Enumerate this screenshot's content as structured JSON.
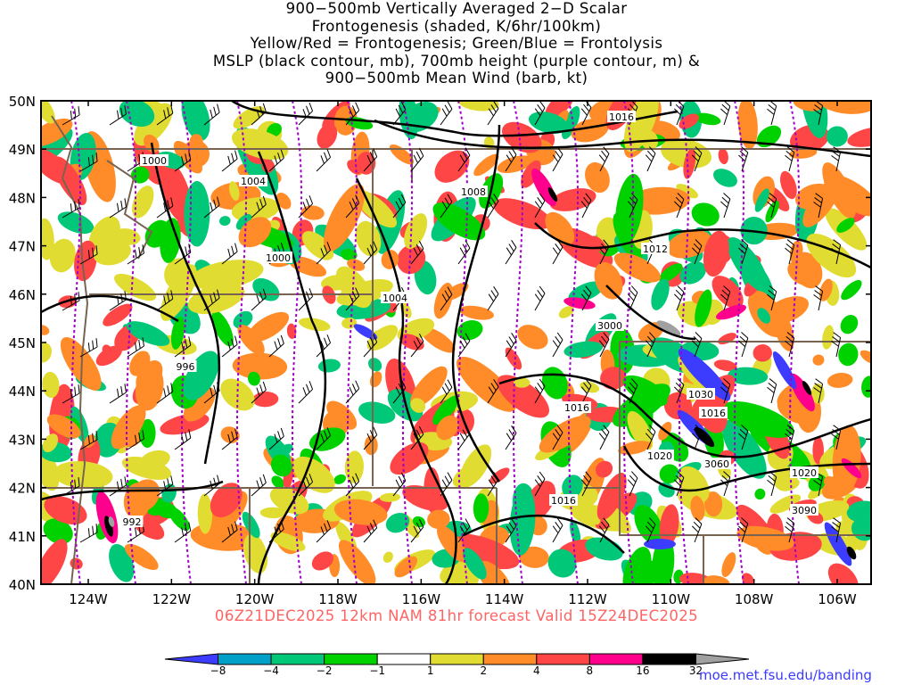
{
  "title": {
    "lines": [
      "900−500mb Vertically Averaged 2−D Scalar",
      "Frontogenesis (shaded, K/6hr/100km)",
      "Yellow/Red = Frontogenesis;  Green/Blue = Frontolysis",
      "MSLP (black contour, mb), 700mb height (purple contour, m) &",
      "900−500mb Mean Wind (barb, kt)"
    ]
  },
  "valid_line": "06Z21DEC2025 12km NAM 81hr forecast Valid 15Z24DEC2025",
  "credit": "moe.met.fsu.edu/banding",
  "map": {
    "lat_labels": [
      "50N",
      "49N",
      "48N",
      "47N",
      "46N",
      "45N",
      "44N",
      "43N",
      "42N",
      "41N",
      "40N"
    ],
    "lon_labels": [
      "124W",
      "122W",
      "120W",
      "118W",
      "116W",
      "114W",
      "112W",
      "110W",
      "108W",
      "106W"
    ],
    "mslp_labels": [
      "1016",
      "1000",
      "1004",
      "1008",
      "1012",
      "1000",
      "1004",
      "996",
      "1016",
      "1030",
      "1016",
      "1020",
      "3060",
      "1020",
      "992",
      "1016",
      "3090"
    ],
    "height_labels": [
      "3000"
    ],
    "colors": {
      "frontogenesis_1_2": "#e1dc32",
      "frontogenesis_2_4": "#ff8c28",
      "frontogenesis_4_8": "#ff4646",
      "frontogenesis_8_16": "#ff008c",
      "frontogenesis_16_32": "#000000",
      "frontogenesis_32": "#a0a0a0",
      "frontolysis_1_2": "#00d200",
      "frontolysis_2_4": "#00c878",
      "frontolysis_4_8": "#00a0c8",
      "frontolysis_8": "#3c3cff",
      "mslp_contour": "#000000",
      "height_contour": "#a000c8",
      "state_border": "#786450",
      "coastline": "#786450"
    }
  },
  "colorbar": {
    "labels": [
      "−8",
      "−4",
      "−2",
      "−1",
      "1",
      "2",
      "4",
      "8",
      "16",
      "32"
    ],
    "colors": [
      "#3c3cff",
      "#00a0c8",
      "#00c878",
      "#00d200",
      "#ffffff",
      "#e1dc32",
      "#ff8c28",
      "#ff4646",
      "#ff008c",
      "#000000",
      "#a0a0a0"
    ]
  }
}
